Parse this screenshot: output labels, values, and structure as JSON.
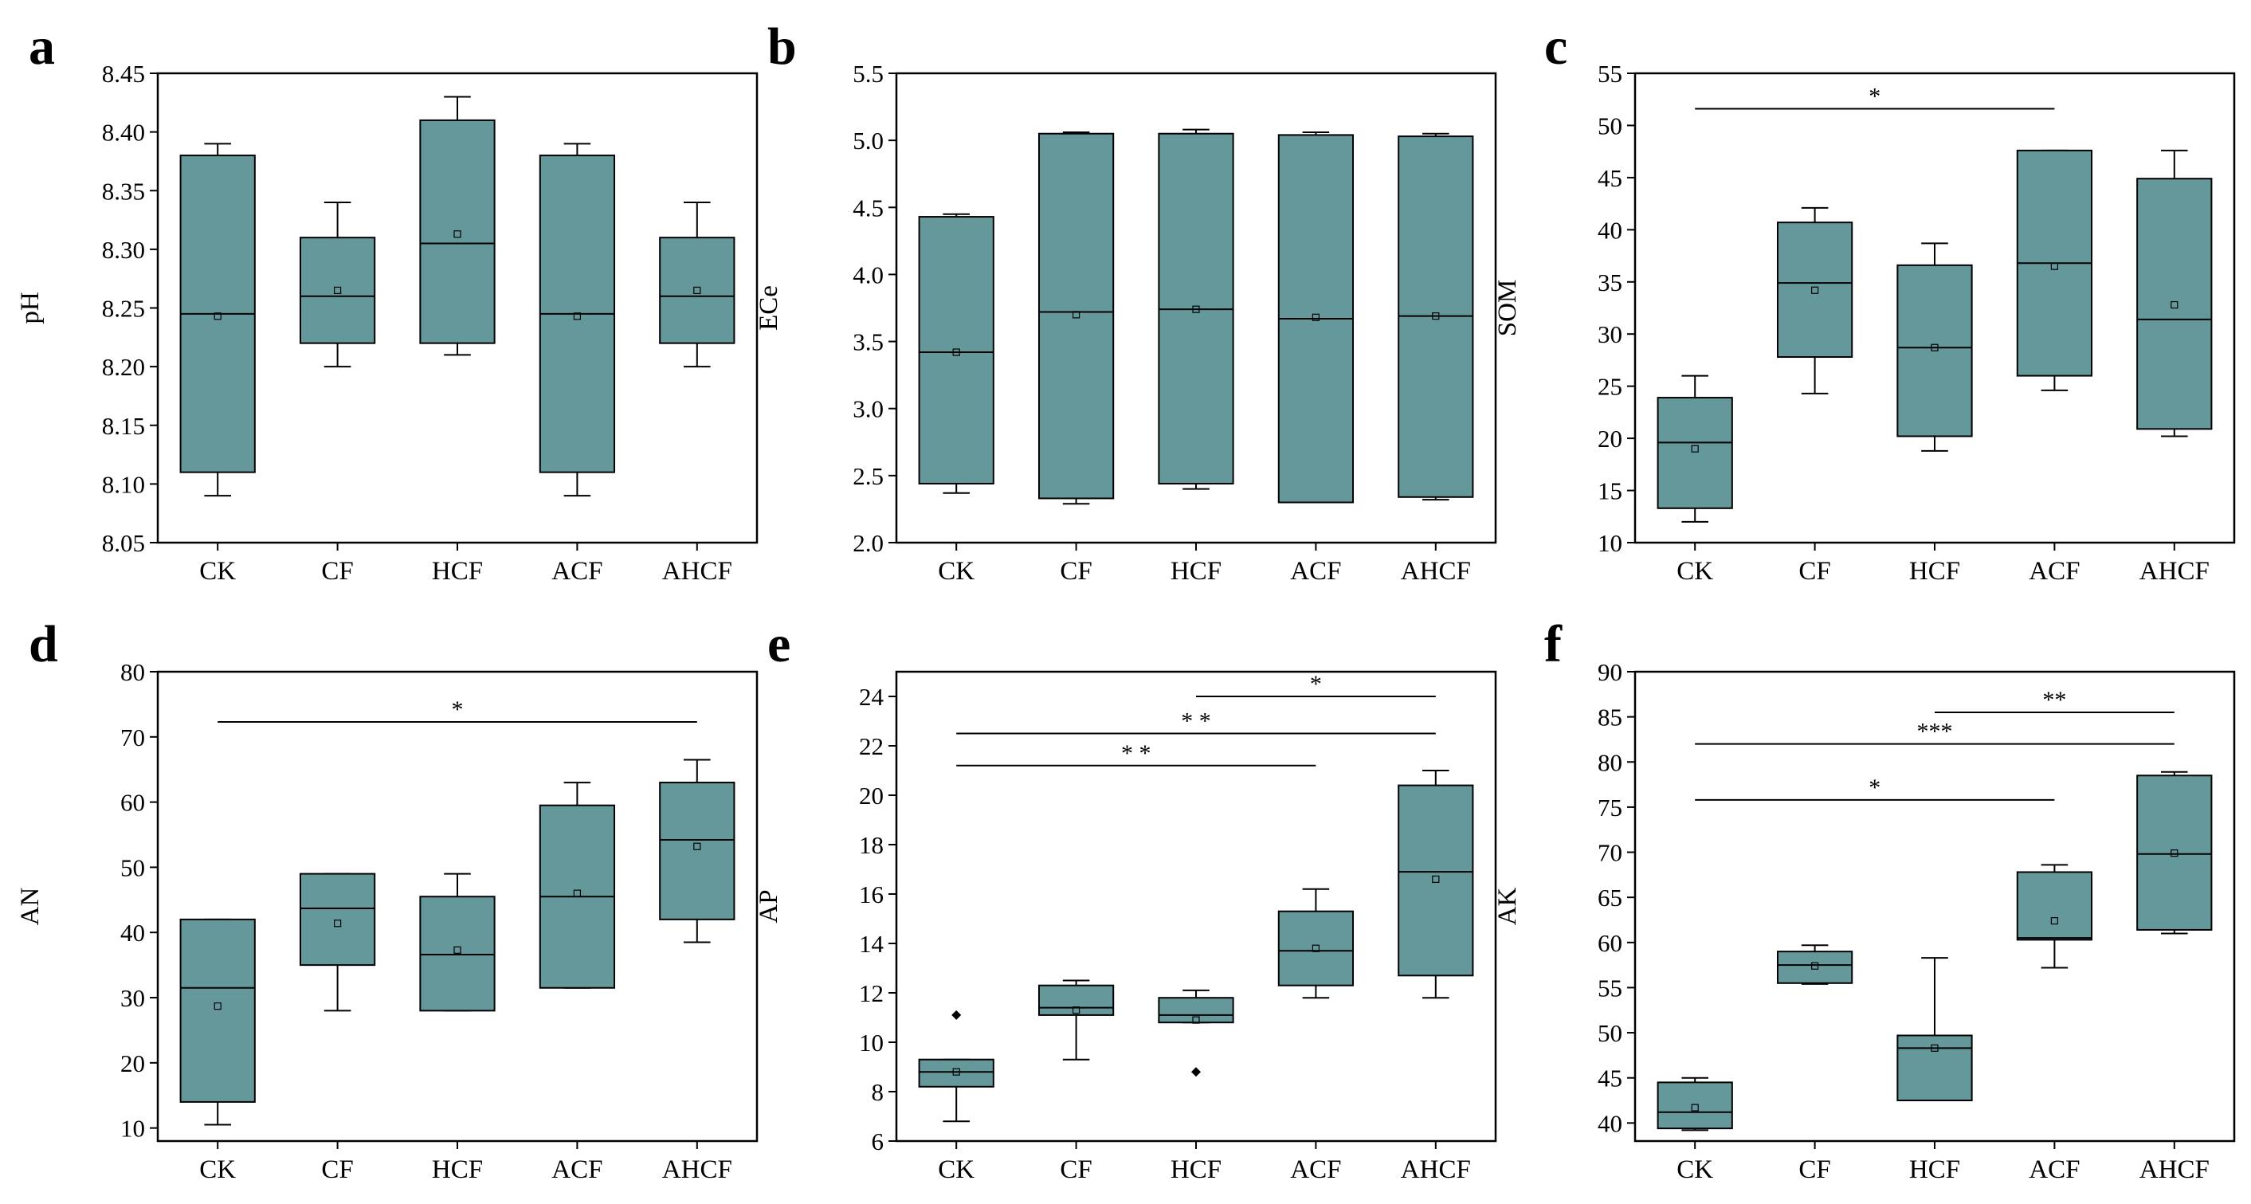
{
  "figure": {
    "colors": {
      "box_fill": "#64989A",
      "stroke": "#000000",
      "background": "#FFFFFF"
    }
  },
  "chart_data": [
    {
      "type": "box",
      "panel_letter": "a",
      "title": "",
      "xlabel": "",
      "ylabel": "pH",
      "ylim": [
        8.05,
        8.45
      ],
      "yticks": [
        "8.05",
        "8.10",
        "8.15",
        "8.20",
        "8.25",
        "8.30",
        "8.35",
        "8.40",
        "8.45"
      ],
      "categories": [
        "CK",
        "CF",
        "HCF",
        "ACF",
        "AHCF"
      ],
      "boxes": [
        {
          "whisker_low": 8.09,
          "q1": 8.11,
          "median": 8.245,
          "q3": 8.38,
          "whisker_high": 8.39,
          "mean": 8.243,
          "outliers": []
        },
        {
          "whisker_low": 8.2,
          "q1": 8.22,
          "median": 8.26,
          "q3": 8.31,
          "whisker_high": 8.34,
          "mean": 8.265,
          "outliers": []
        },
        {
          "whisker_low": 8.21,
          "q1": 8.22,
          "median": 8.305,
          "q3": 8.41,
          "whisker_high": 8.43,
          "mean": 8.313,
          "outliers": []
        },
        {
          "whisker_low": 8.09,
          "q1": 8.11,
          "median": 8.245,
          "q3": 8.38,
          "whisker_high": 8.39,
          "mean": 8.243,
          "outliers": []
        },
        {
          "whisker_low": 8.2,
          "q1": 8.22,
          "median": 8.26,
          "q3": 8.31,
          "whisker_high": 8.34,
          "mean": 8.265,
          "outliers": []
        }
      ],
      "significance": []
    },
    {
      "type": "box",
      "panel_letter": "b",
      "title": "",
      "xlabel": "",
      "ylabel": "ECe",
      "ylim": [
        2.0,
        5.5
      ],
      "yticks": [
        "2.0",
        "2.5",
        "3.0",
        "3.5",
        "4.0",
        "4.5",
        "5.0",
        "5.5"
      ],
      "categories": [
        "CK",
        "CF",
        "HCF",
        "ACF",
        "AHCF"
      ],
      "boxes": [
        {
          "whisker_low": 2.37,
          "q1": 2.44,
          "median": 3.42,
          "q3": 4.43,
          "whisker_high": 4.45,
          "mean": 3.42,
          "outliers": []
        },
        {
          "whisker_low": 2.29,
          "q1": 2.33,
          "median": 3.72,
          "q3": 5.05,
          "whisker_high": 5.06,
          "mean": 3.7,
          "outliers": []
        },
        {
          "whisker_low": 2.4,
          "q1": 2.44,
          "median": 3.74,
          "q3": 5.05,
          "whisker_high": 5.08,
          "mean": 3.74,
          "outliers": []
        },
        {
          "whisker_low": 2.3,
          "q1": 2.3,
          "median": 3.67,
          "q3": 5.04,
          "whisker_high": 5.06,
          "mean": 3.68,
          "outliers": []
        },
        {
          "whisker_low": 2.32,
          "q1": 2.34,
          "median": 3.69,
          "q3": 5.03,
          "whisker_high": 5.05,
          "mean": 3.69,
          "outliers": []
        }
      ],
      "significance": []
    },
    {
      "type": "box",
      "panel_letter": "c",
      "title": "",
      "xlabel": "",
      "ylabel": "SOM",
      "ylim": [
        10,
        55
      ],
      "yticks": [
        "10",
        "15",
        "20",
        "25",
        "30",
        "35",
        "40",
        "45",
        "50",
        "55"
      ],
      "categories": [
        "CK",
        "CF",
        "HCF",
        "ACF",
        "AHCF"
      ],
      "boxes": [
        {
          "whisker_low": 12.0,
          "q1": 13.3,
          "median": 19.6,
          "q3": 23.9,
          "whisker_high": 26.0,
          "mean": 19.0,
          "outliers": []
        },
        {
          "whisker_low": 24.3,
          "q1": 27.8,
          "median": 34.9,
          "q3": 40.7,
          "whisker_high": 42.1,
          "mean": 34.2,
          "outliers": []
        },
        {
          "whisker_low": 18.8,
          "q1": 20.2,
          "median": 28.7,
          "q3": 36.6,
          "whisker_high": 38.7,
          "mean": 28.7,
          "outliers": []
        },
        {
          "whisker_low": 24.6,
          "q1": 26.0,
          "median": 36.8,
          "q3": 47.6,
          "whisker_high": 47.6,
          "mean": 36.5,
          "outliers": []
        },
        {
          "whisker_low": 20.2,
          "q1": 20.9,
          "median": 31.4,
          "q3": 44.9,
          "whisker_high": 47.6,
          "mean": 32.8,
          "outliers": []
        }
      ],
      "significance": [
        {
          "from": "CK",
          "to": "ACF",
          "y": 51.6,
          "label": "*"
        }
      ]
    },
    {
      "type": "box",
      "panel_letter": "d",
      "title": "",
      "xlabel": "",
      "ylabel": "AN",
      "ylim": [
        8,
        80
      ],
      "yticks": [
        "10",
        "20",
        "30",
        "40",
        "50",
        "60",
        "70",
        "80"
      ],
      "categories": [
        "CK",
        "CF",
        "HCF",
        "ACF",
        "AHCF"
      ],
      "boxes": [
        {
          "whisker_low": 10.5,
          "q1": 14.0,
          "median": 31.5,
          "q3": 42.0,
          "whisker_high": 42.0,
          "mean": 28.7,
          "outliers": []
        },
        {
          "whisker_low": 28.0,
          "q1": 35.0,
          "median": 43.7,
          "q3": 49.0,
          "whisker_high": 49.0,
          "mean": 41.4,
          "outliers": []
        },
        {
          "whisker_low": 28.0,
          "q1": 28.0,
          "median": 36.6,
          "q3": 45.5,
          "whisker_high": 49.0,
          "mean": 37.3,
          "outliers": []
        },
        {
          "whisker_low": 31.5,
          "q1": 31.5,
          "median": 45.5,
          "q3": 59.5,
          "whisker_high": 63.0,
          "mean": 46.0,
          "outliers": []
        },
        {
          "whisker_low": 38.5,
          "q1": 42.0,
          "median": 54.2,
          "q3": 63.0,
          "whisker_high": 66.5,
          "mean": 53.2,
          "outliers": []
        }
      ],
      "significance": [
        {
          "from": "CK",
          "to": "AHCF",
          "y": 72.3,
          "label": "*"
        }
      ]
    },
    {
      "type": "box",
      "panel_letter": "e",
      "title": "",
      "xlabel": "",
      "ylabel": "AP",
      "ylim": [
        6,
        25
      ],
      "yticks": [
        "6",
        "8",
        "10",
        "12",
        "14",
        "16",
        "18",
        "20",
        "22",
        "24"
      ],
      "categories": [
        "CK",
        "CF",
        "HCF",
        "ACF",
        "AHCF"
      ],
      "boxes": [
        {
          "whisker_low": 6.8,
          "q1": 8.2,
          "median": 8.8,
          "q3": 9.3,
          "whisker_high": 9.3,
          "mean": 8.8,
          "outliers": [
            11.1
          ]
        },
        {
          "whisker_low": 9.3,
          "q1": 11.1,
          "median": 11.4,
          "q3": 12.3,
          "whisker_high": 12.5,
          "mean": 11.3,
          "outliers": []
        },
        {
          "whisker_low": 10.8,
          "q1": 10.8,
          "median": 11.1,
          "q3": 11.8,
          "whisker_high": 12.1,
          "mean": 10.9,
          "outliers": [
            8.8
          ]
        },
        {
          "whisker_low": 11.8,
          "q1": 12.3,
          "median": 13.7,
          "q3": 15.3,
          "whisker_high": 16.2,
          "mean": 13.8,
          "outliers": []
        },
        {
          "whisker_low": 11.8,
          "q1": 12.7,
          "median": 16.9,
          "q3": 20.4,
          "whisker_high": 21.0,
          "mean": 16.6,
          "outliers": []
        }
      ],
      "significance": [
        {
          "from": "HCF",
          "to": "AHCF",
          "y": 24.0,
          "label": "*"
        },
        {
          "from": "CK",
          "to": "AHCF",
          "y": 22.5,
          "label": "* *"
        },
        {
          "from": "CK",
          "to": "ACF",
          "y": 21.2,
          "label": "* *"
        }
      ]
    },
    {
      "type": "box",
      "panel_letter": "f",
      "title": "",
      "xlabel": "",
      "ylabel": "AK",
      "ylim": [
        38,
        90
      ],
      "yticks": [
        "40",
        "45",
        "50",
        "55",
        "60",
        "65",
        "70",
        "75",
        "80",
        "85",
        "90"
      ],
      "categories": [
        "CK",
        "CF",
        "HCF",
        "ACF",
        "AHCF"
      ],
      "boxes": [
        {
          "whisker_low": 39.2,
          "q1": 39.4,
          "median": 41.2,
          "q3": 44.5,
          "whisker_high": 45.0,
          "mean": 41.7,
          "outliers": []
        },
        {
          "whisker_low": 55.4,
          "q1": 55.5,
          "median": 57.5,
          "q3": 59.0,
          "whisker_high": 59.7,
          "mean": 57.4,
          "outliers": []
        },
        {
          "whisker_low": 42.5,
          "q1": 42.5,
          "median": 48.3,
          "q3": 49.7,
          "whisker_high": 58.3,
          "mean": 48.3,
          "outliers": []
        },
        {
          "whisker_low": 57.2,
          "q1": 60.3,
          "median": 60.5,
          "q3": 67.8,
          "whisker_high": 68.6,
          "mean": 62.4,
          "outliers": []
        },
        {
          "whisker_low": 61.0,
          "q1": 61.4,
          "median": 69.8,
          "q3": 78.5,
          "whisker_high": 78.9,
          "mean": 69.9,
          "outliers": []
        }
      ],
      "significance": [
        {
          "from": "HCF",
          "to": "AHCF",
          "y": 85.5,
          "label": "**"
        },
        {
          "from": "CK",
          "to": "AHCF",
          "y": 82.0,
          "label": "***"
        },
        {
          "from": "CK",
          "to": "ACF",
          "y": 75.8,
          "label": "*"
        }
      ]
    }
  ]
}
